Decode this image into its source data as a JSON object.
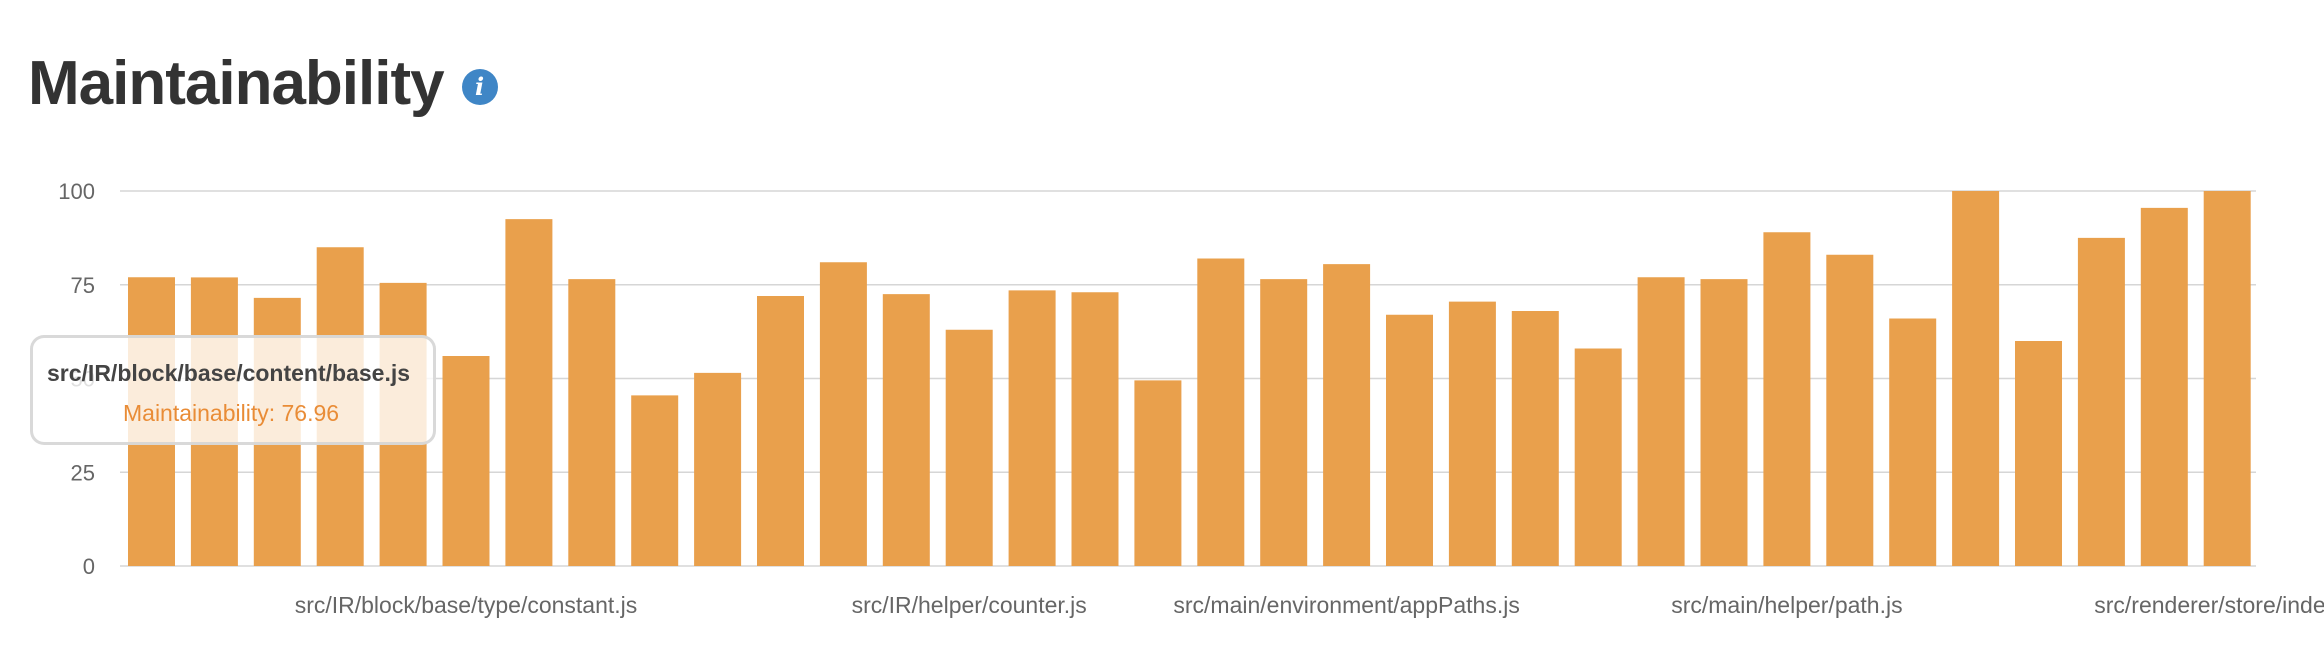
{
  "header": {
    "title": "Maintainability",
    "info_icon": "info-icon",
    "info_icon_glyph": "i"
  },
  "colors": {
    "bar": "#E9A04C",
    "grid": "#D6D6D6",
    "info_icon_bg": "#3F86C6",
    "tooltip_value": "#E98C36"
  },
  "chart_data": {
    "type": "bar",
    "ylim": [
      0,
      100
    ],
    "y_ticks": [
      0,
      25,
      50,
      75,
      100
    ],
    "grid": true,
    "values": [
      77,
      76.96,
      71.5,
      85,
      75.5,
      56,
      92.5,
      76.5,
      45.5,
      51.5,
      72,
      81,
      72.5,
      63,
      73.5,
      73,
      49.5,
      82,
      76.5,
      80.5,
      67,
      70.5,
      68,
      58,
      77,
      76.5,
      89,
      83,
      66,
      100,
      60,
      87.5,
      95.5,
      100
    ],
    "x_tick_labels": [
      {
        "index": 5,
        "text": "src/IR/block/base/type/constant.js"
      },
      {
        "index": 13,
        "text": "src/IR/helper/counter.js"
      },
      {
        "index": 19,
        "text": "src/main/environment/appPaths.js"
      },
      {
        "index": 26,
        "text": "src/main/helper/path.js"
      },
      {
        "index": 33,
        "text": "src/renderer/store/index.js"
      }
    ]
  },
  "tooltip": {
    "title": "src/IR/block/base/content/base.js",
    "value_text": "Maintainability: 76.96"
  }
}
